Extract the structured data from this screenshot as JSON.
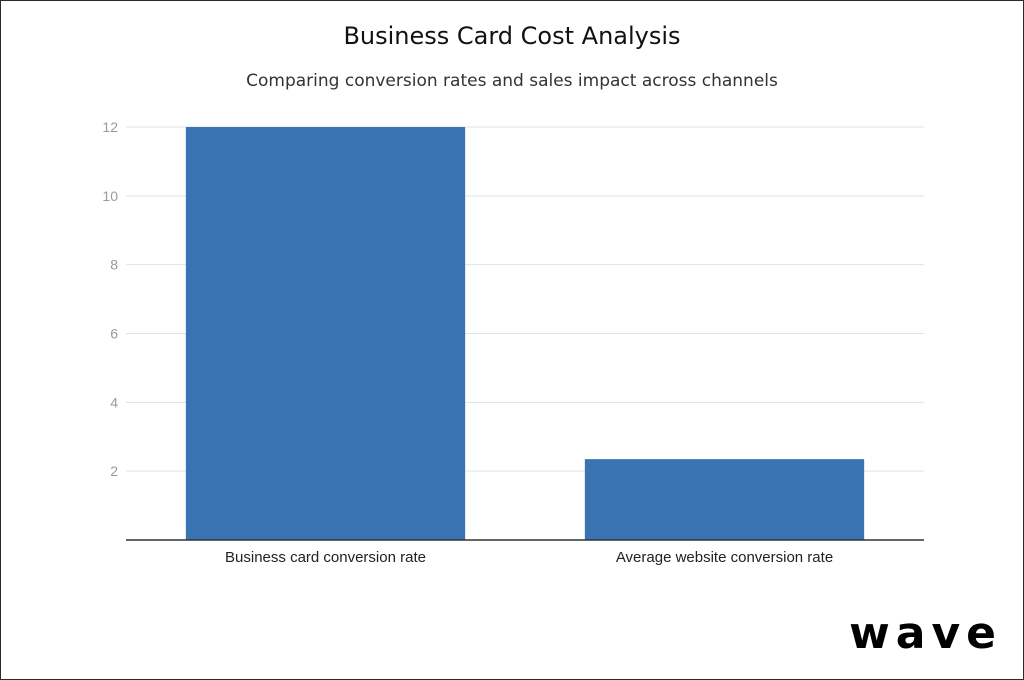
{
  "chart_data": {
    "type": "bar",
    "title": "Business Card Cost Analysis",
    "subtitle": "Comparing conversion rates and sales impact across channels",
    "categories": [
      "Business card conversion rate",
      "Average website conversion rate"
    ],
    "values": [
      12,
      2.35
    ],
    "yticks": [
      2,
      4,
      6,
      8,
      10,
      12
    ],
    "ylim": [
      0,
      12
    ],
    "xlabel": "",
    "ylabel": "",
    "grid": true,
    "legend": "none",
    "bar_color": "#3a73b1"
  },
  "brand": {
    "logo_text": "wave"
  }
}
